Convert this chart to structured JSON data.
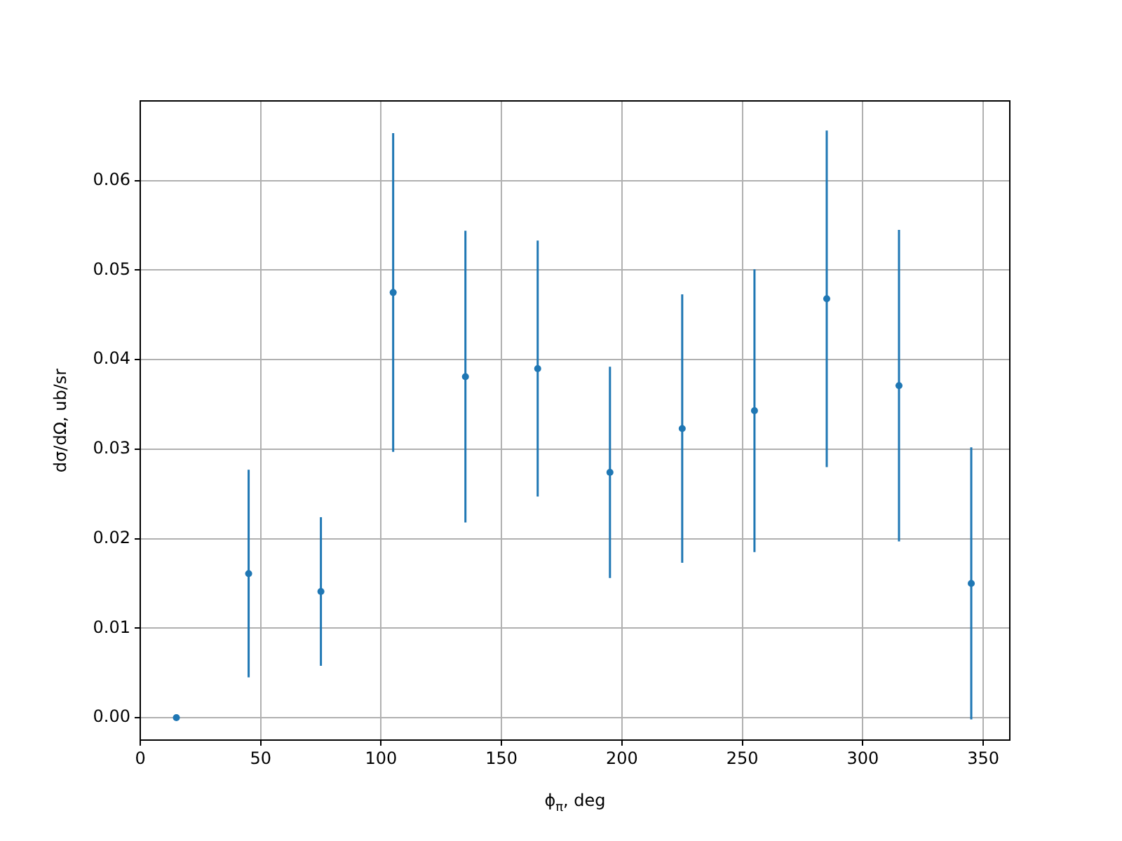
{
  "chart_data": {
    "type": "scatter",
    "xlabel": "ϕ$_{π}$, deg",
    "ylabel": "dσ/dΩ, ub/sr",
    "x": [
      15,
      45,
      75,
      105,
      135,
      165,
      195,
      225,
      255,
      285,
      315,
      345
    ],
    "values": [
      0,
      0.0161,
      0.0141,
      0.0475,
      0.0381,
      0.039,
      0.0274,
      0.0323,
      0.0343,
      0.0468,
      0.0371,
      0.015
    ],
    "errors": [
      null,
      0.0116,
      0.0083,
      0.0178,
      0.0163,
      0.0143,
      0.0118,
      0.015,
      0.0158,
      0.0188,
      0.0174,
      0.0152
    ],
    "color": "#1f77b4",
    "marker": "circle",
    "grid": true,
    "xlim": [
      0,
      361
    ],
    "xticks": [
      0,
      50,
      100,
      150,
      200,
      250,
      300,
      350
    ],
    "ylim": [
      -0.0025,
      0.0689
    ],
    "yticks": [
      {
        "value": 0,
        "label": "0.00"
      },
      {
        "value": 0.01,
        "label": "0.01"
      },
      {
        "value": 0.02,
        "label": "0.02"
      },
      {
        "value": 0.03,
        "label": "0.03"
      },
      {
        "value": 0.04,
        "label": "0.04"
      },
      {
        "value": 0.05,
        "label": "0.05"
      },
      {
        "value": 0.06,
        "label": "0.06"
      }
    ]
  }
}
